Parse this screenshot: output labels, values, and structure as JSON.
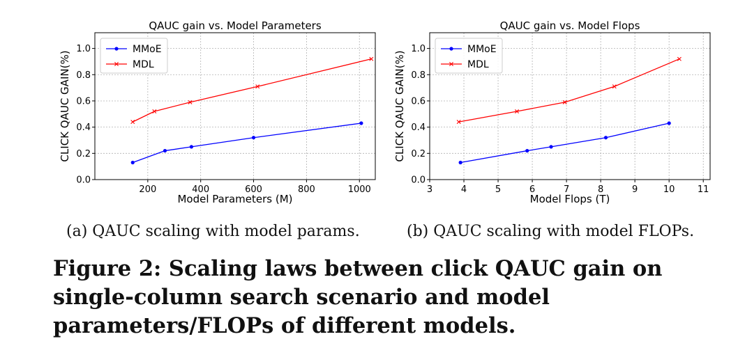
{
  "chart_data": [
    {
      "type": "line",
      "title": "QAUC gain vs. Model Parameters",
      "xlabel": "Model Parameters (M)",
      "ylabel": "CLICK QAUC GAIN(%)",
      "xlim": [
        0,
        1060
      ],
      "ylim": [
        0,
        1.12
      ],
      "xticks": [
        200,
        400,
        600,
        800,
        1000
      ],
      "yticks": [
        0.0,
        0.2,
        0.4,
        0.6,
        0.8,
        1.0
      ],
      "grid": true,
      "legend": "top-left",
      "series": [
        {
          "name": "MMoE",
          "color": "#0000ff",
          "marker": "dot",
          "x": [
            143,
            265,
            365,
            600,
            1007
          ],
          "y": [
            0.13,
            0.22,
            0.25,
            0.32,
            0.43
          ]
        },
        {
          "name": "MDL",
          "color": "#ff0000",
          "marker": "x",
          "x": [
            143,
            225,
            360,
            615,
            1045
          ],
          "y": [
            0.44,
            0.52,
            0.59,
            0.71,
            0.92
          ]
        }
      ]
    },
    {
      "type": "line",
      "title": "QAUC gain vs. Model Flops",
      "xlabel": "Model Flops (T)",
      "ylabel": "CLICK QAUC GAIN(%)",
      "xlim": [
        3,
        11.2
      ],
      "ylim": [
        0,
        1.12
      ],
      "xticks": [
        3,
        4,
        5,
        6,
        7,
        8,
        9,
        10,
        11
      ],
      "yticks": [
        0.0,
        0.2,
        0.4,
        0.6,
        0.8,
        1.0
      ],
      "grid": true,
      "legend": "top-left",
      "series": [
        {
          "name": "MMoE",
          "color": "#0000ff",
          "marker": "dot",
          "x": [
            3.9,
            5.85,
            6.55,
            8.15,
            10.0
          ],
          "y": [
            0.13,
            0.22,
            0.25,
            0.32,
            0.43
          ]
        },
        {
          "name": "MDL",
          "color": "#ff0000",
          "marker": "x",
          "x": [
            3.85,
            5.55,
            6.95,
            8.4,
            10.3
          ],
          "y": [
            0.44,
            0.52,
            0.59,
            0.71,
            0.92
          ]
        }
      ]
    }
  ],
  "captions": {
    "sub_a": "(a)  QAUC scaling with model params.",
    "sub_b": "(b)  QAUC scaling with model FLOPs.",
    "figure": "Figure 2: Scaling laws between click QAUC gain on single-column search scenario and model parameters/FLOPs of different models."
  }
}
